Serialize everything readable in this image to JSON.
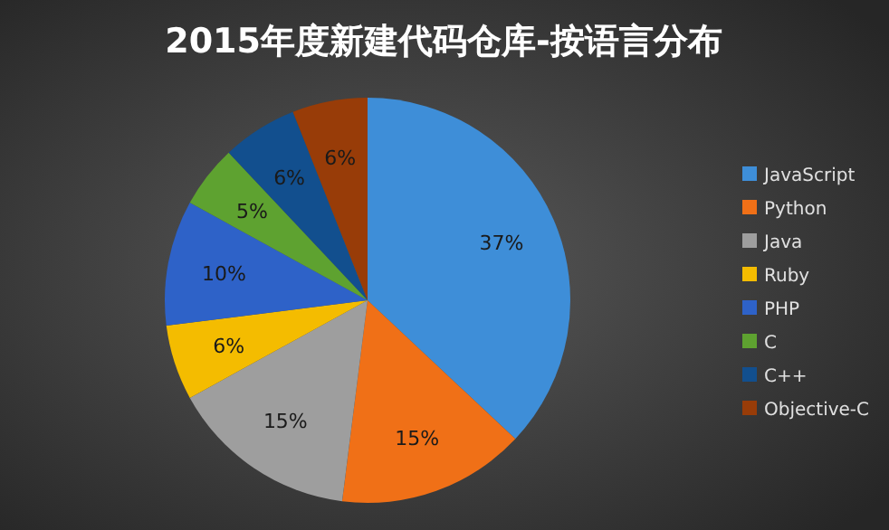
{
  "chart_data": {
    "type": "pie",
    "title": "2015年度新建代码仓库-按语言分布",
    "categories": [
      "JavaScript",
      "Python",
      "Java",
      "Ruby",
      "PHP",
      "C",
      "C++",
      "Objective-C"
    ],
    "values": [
      37,
      15,
      15,
      6,
      10,
      5,
      6,
      6
    ],
    "colors": [
      "#3e8ed8",
      "#f07017",
      "#9e9e9e",
      "#f4bc00",
      "#2e62c8",
      "#5ea230",
      "#124f8e",
      "#983c08"
    ],
    "value_labels": [
      "37%",
      "15%",
      "15%",
      "6%",
      "10%",
      "5%",
      "6%",
      "6%"
    ],
    "legend": "right"
  }
}
